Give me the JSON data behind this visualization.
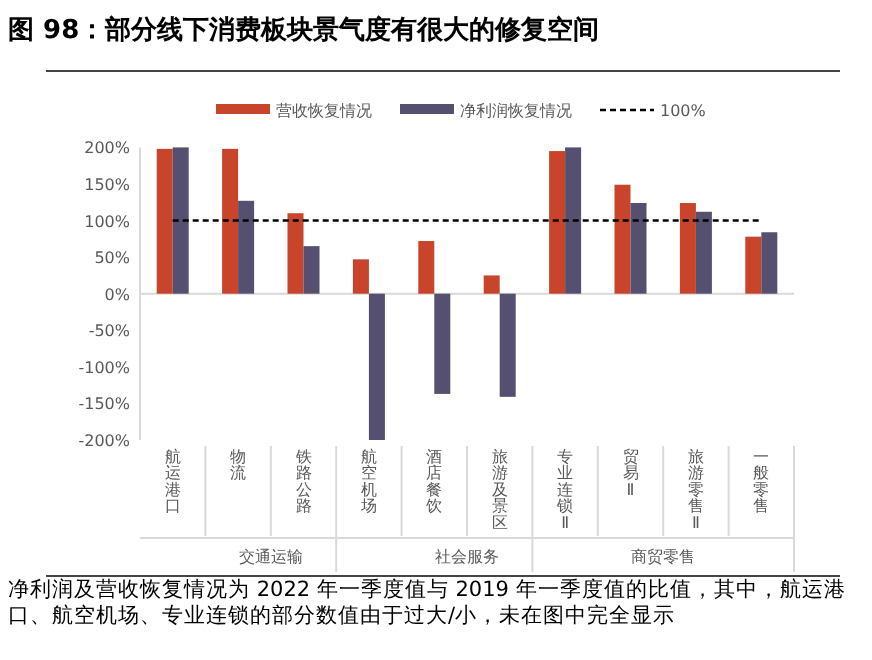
{
  "chart_data": {
    "type": "bar",
    "title": "图 98：部分线下消费板块景气度有很大的修复空间",
    "categories": [
      "航运港口",
      "物流",
      "铁路公路",
      "航空机场",
      "酒店餐饮",
      "旅游及景区",
      "专业连锁Ⅱ",
      "贸易Ⅱ",
      "旅游零售Ⅱ",
      "一般零售"
    ],
    "series": [
      {
        "name": "营收恢复情况",
        "color": "#c8442a",
        "values": [
          198,
          198,
          110,
          47,
          72,
          25,
          195,
          149,
          124,
          78
        ]
      },
      {
        "name": "净利润恢复情况",
        "color": "#55506f",
        "values": [
          200,
          127,
          65,
          -200,
          -137,
          -141,
          200,
          124,
          112,
          84
        ]
      }
    ],
    "ylim": [
      -200,
      200
    ],
    "yticks": [
      {
        "value": -200,
        "label": "-200%"
      },
      {
        "value": -150,
        "label": "-150%"
      },
      {
        "value": -100,
        "label": "-100%"
      },
      {
        "value": -50,
        "label": "-50%"
      },
      {
        "value": 0,
        "label": "0%"
      },
      {
        "value": 50,
        "label": "50%"
      },
      {
        "value": 100,
        "label": "100%"
      },
      {
        "value": 150,
        "label": "150%"
      },
      {
        "value": 200,
        "label": "200%"
      }
    ],
    "ref_lines": [
      {
        "axis": "y",
        "value": 100,
        "label": "100%",
        "color": "#000000",
        "line_style": "dashed"
      }
    ],
    "legend": "top",
    "grid": false,
    "annotations": [
      "交通运输",
      "社会服务",
      "商贸零售",
      "净利润及营收恢复情况为 2022 年一季度值与 2019 年一季度值的比值，其中，航运港口、航空机场、专业连锁的部分数值由于过大/小，未在图中完全显示"
    ]
  }
}
